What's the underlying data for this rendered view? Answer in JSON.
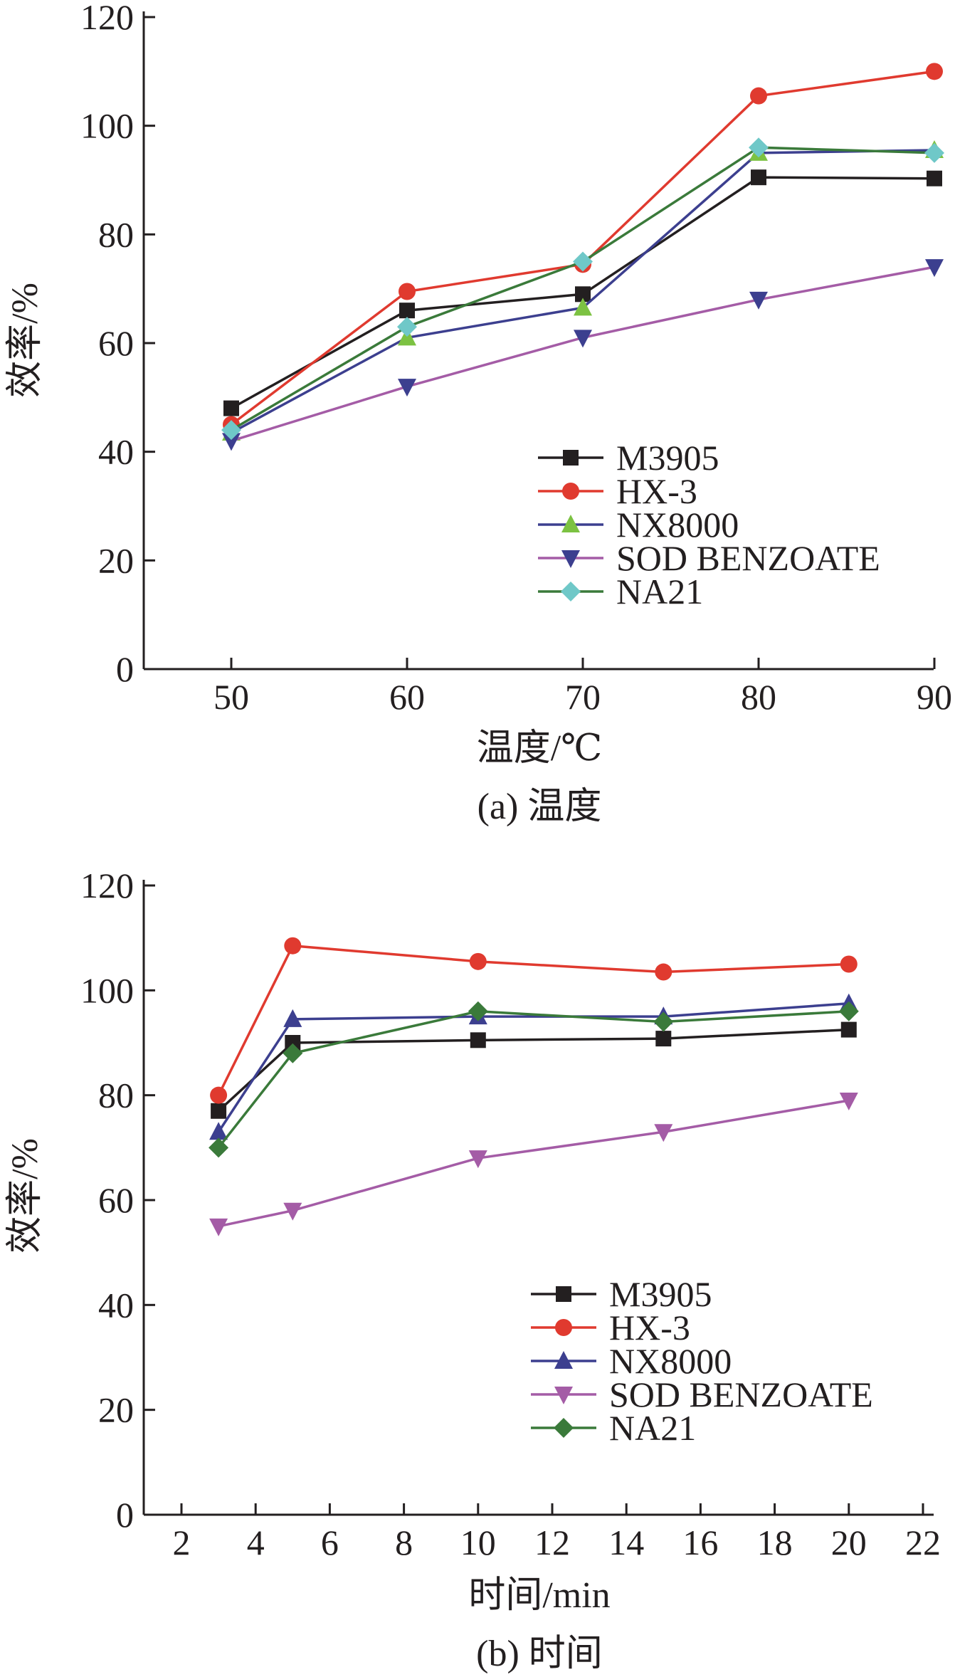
{
  "chart_data": [
    {
      "type": "line",
      "caption": "(a) 温度",
      "xlabel": "温度/℃",
      "ylabel": "效率/%",
      "x": [
        50,
        60,
        70,
        80,
        90
      ],
      "xticks": [
        "50",
        "60",
        "70",
        "80",
        "90"
      ],
      "xlim": [
        45,
        90
      ],
      "ylim": [
        0,
        120
      ],
      "yticks": [
        "0",
        "20",
        "40",
        "60",
        "80",
        "100",
        "120"
      ],
      "legend_position": "lower-right",
      "series": [
        {
          "name": "M3905",
          "color": "#231f20",
          "marker": "square",
          "values": [
            48,
            66,
            69,
            90.5,
            90.3
          ]
        },
        {
          "name": "HX-3",
          "color": "#e03a2f",
          "marker": "circle",
          "values": [
            45,
            69.5,
            74.5,
            105.5,
            110
          ]
        },
        {
          "name": "NX8000",
          "color": "#3c3f8f",
          "marker_color": "#7cc242",
          "marker": "triangle-up",
          "values": [
            43.5,
            61,
            66.5,
            95,
            95.5
          ]
        },
        {
          "name": "SOD BENZOATE",
          "color": "#a45ca6",
          "marker_color": "#3c3f8f",
          "marker": "triangle-down",
          "values": [
            42,
            52,
            61,
            68,
            74
          ]
        },
        {
          "name": "NA21",
          "color": "#3a7a3a",
          "marker_color": "#6fc8c8",
          "marker": "diamond",
          "values": [
            44,
            63,
            75,
            96,
            95
          ]
        }
      ]
    },
    {
      "type": "line",
      "caption": "(b) 时间",
      "xlabel": "时间/min",
      "ylabel": "效率/%",
      "x": [
        3,
        5,
        10,
        15,
        20
      ],
      "xticks": [
        "2",
        "4",
        "6",
        "8",
        "10",
        "12",
        "14",
        "16",
        "18",
        "20",
        "22"
      ],
      "xlim": [
        1,
        22
      ],
      "ylim": [
        0,
        120
      ],
      "yticks": [
        "0",
        "20",
        "40",
        "60",
        "80",
        "100",
        "120"
      ],
      "legend_position": "lower-right",
      "series": [
        {
          "name": "M3905",
          "color": "#231f20",
          "marker": "square",
          "values": [
            77,
            90,
            90.5,
            90.8,
            92.5
          ]
        },
        {
          "name": "HX-3",
          "color": "#e03a2f",
          "marker": "circle",
          "values": [
            80,
            108.5,
            105.5,
            103.5,
            105
          ]
        },
        {
          "name": "NX8000",
          "color": "#3c3f8f",
          "marker": "triangle-up",
          "values": [
            73,
            94.5,
            95,
            95,
            97.5
          ]
        },
        {
          "name": "SOD BENZOATE",
          "color": "#a45ca6",
          "marker": "triangle-down",
          "values": [
            55,
            58,
            68,
            73,
            79
          ]
        },
        {
          "name": "NA21",
          "color": "#3a7a3a",
          "marker": "diamond",
          "values": [
            70,
            88,
            96,
            94,
            96
          ]
        }
      ]
    }
  ]
}
